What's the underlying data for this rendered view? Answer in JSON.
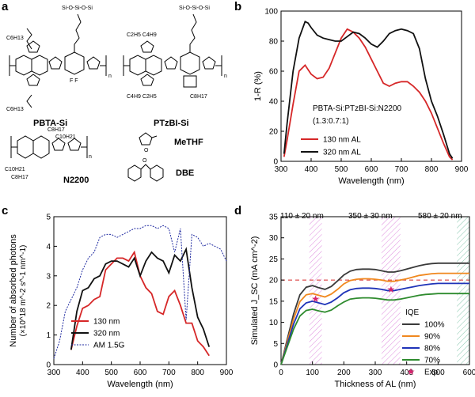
{
  "panels": {
    "a": {
      "letter": "a",
      "compounds": [
        "PBTA-Si",
        "PTzBI-Si",
        "N2200",
        "MeTHF",
        "DBE"
      ]
    },
    "b": {
      "letter": "b",
      "annotation_line1": "PBTA-Si:PTzBI-Si:N2200",
      "annotation_line2": "(1.3:0.7:1)"
    },
    "c": {
      "letter": "c"
    },
    "d": {
      "letter": "d",
      "band_labels": [
        "110 ± 20 nm",
        "350 ± 30 nm",
        "580 ± 20 nm"
      ],
      "iqe_title": "IQE"
    }
  },
  "chart_data": [
    {
      "panel": "b",
      "type": "line",
      "xlabel": "Wavelength (nm)",
      "ylabel": "1-R (%)",
      "xlim": [
        300,
        900
      ],
      "ylim": [
        0,
        100
      ],
      "xticks": [
        300,
        400,
        500,
        600,
        700,
        800,
        900
      ],
      "yticks": [
        0,
        20,
        40,
        60,
        80,
        100
      ],
      "legend_position": "bottom-left",
      "series": [
        {
          "name": "130 nm AL",
          "color": "#d62728",
          "x": [
            310,
            320,
            340,
            360,
            380,
            390,
            400,
            420,
            440,
            460,
            480,
            500,
            520,
            540,
            560,
            580,
            600,
            620,
            640,
            660,
            680,
            700,
            720,
            740,
            760,
            780,
            800,
            820,
            840,
            860,
            870
          ],
          "y": [
            3,
            14,
            38,
            60,
            64,
            61,
            58,
            55,
            56,
            62,
            72,
            82,
            88,
            86,
            82,
            76,
            68,
            60,
            52,
            50,
            52,
            53,
            53,
            50,
            46,
            40,
            32,
            22,
            12,
            3,
            1
          ]
        },
        {
          "name": "320 nm AL",
          "color": "#111111",
          "x": [
            310,
            320,
            340,
            360,
            380,
            390,
            400,
            420,
            440,
            460,
            480,
            500,
            520,
            540,
            560,
            580,
            600,
            620,
            640,
            660,
            680,
            700,
            720,
            740,
            760,
            780,
            800,
            820,
            840,
            860,
            870
          ],
          "y": [
            5,
            25,
            60,
            82,
            93,
            92,
            89,
            84,
            82,
            81,
            80,
            80,
            83,
            86,
            85,
            82,
            78,
            76,
            80,
            85,
            87,
            88,
            87,
            85,
            75,
            55,
            40,
            30,
            18,
            5,
            2
          ]
        }
      ]
    },
    {
      "panel": "c",
      "type": "line",
      "xlabel": "Wavelength (nm)",
      "ylabel": "Number of absorbed photons",
      "ylabel_units": "(×10^18 m^-2 s^-1 nm^-1)",
      "xlim": [
        300,
        900
      ],
      "ylim": [
        0,
        5
      ],
      "xticks": [
        300,
        400,
        500,
        600,
        700,
        800,
        900
      ],
      "yticks": [
        0,
        1,
        2,
        3,
        4,
        5
      ],
      "legend_position": "bottom-left",
      "series": [
        {
          "name": "130 nm",
          "color": "#d62728",
          "x": [
            360,
            380,
            400,
            420,
            440,
            460,
            480,
            500,
            520,
            540,
            560,
            580,
            600,
            620,
            640,
            660,
            680,
            700,
            720,
            740,
            760,
            780,
            800,
            820,
            840
          ],
          "y": [
            0.5,
            1.3,
            1.9,
            2.0,
            2.2,
            2.3,
            3.2,
            3.4,
            3.6,
            3.6,
            3.5,
            3.8,
            3.0,
            2.6,
            2.4,
            1.8,
            1.7,
            2.3,
            2.5,
            2.0,
            1.4,
            1.4,
            0.8,
            0.6,
            0.3
          ]
        },
        {
          "name": "320 nm",
          "color": "#111111",
          "x": [
            360,
            380,
            400,
            420,
            440,
            460,
            480,
            500,
            520,
            540,
            560,
            580,
            600,
            620,
            640,
            660,
            680,
            700,
            720,
            740,
            760,
            780,
            800,
            820,
            840
          ],
          "y": [
            0.5,
            1.8,
            2.5,
            2.6,
            2.9,
            3.0,
            3.4,
            3.5,
            3.5,
            3.4,
            3.3,
            3.6,
            3.0,
            3.5,
            3.8,
            3.6,
            3.5,
            3.1,
            3.7,
            3.5,
            3.9,
            2.6,
            1.6,
            1.2,
            0.6
          ]
        },
        {
          "name": "AM 1.5G",
          "color": "#1f2aa0",
          "dashed": true,
          "x": [
            300,
            320,
            340,
            360,
            380,
            400,
            420,
            440,
            460,
            480,
            500,
            520,
            540,
            560,
            580,
            600,
            620,
            640,
            660,
            680,
            700,
            720,
            740,
            760,
            780,
            800,
            820,
            840,
            860,
            880,
            900
          ],
          "y": [
            0.2,
            0.8,
            1.8,
            2.2,
            2.6,
            3.2,
            3.6,
            3.8,
            4.3,
            4.4,
            4.4,
            4.3,
            4.4,
            4.5,
            4.6,
            4.6,
            4.7,
            4.7,
            4.6,
            4.7,
            4.6,
            3.8,
            4.6,
            1.5,
            4.4,
            4.3,
            4.0,
            4.1,
            4.0,
            3.9,
            3.5
          ]
        }
      ]
    },
    {
      "panel": "d",
      "type": "line",
      "xlabel": "Thickness of AL (nm)",
      "ylabel": "Simulated J_SC (mA cm^-2)",
      "xlim": [
        0,
        600
      ],
      "ylim": [
        0,
        35
      ],
      "xticks": [
        0,
        100,
        200,
        300,
        400,
        500,
        600
      ],
      "yticks": [
        0,
        5,
        10,
        15,
        20,
        25,
        30,
        35
      ],
      "legend_position": "right",
      "dashed_reference_y": 20,
      "bands": [
        [
          90,
          130
        ],
        [
          320,
          380
        ],
        [
          560,
          600
        ]
      ],
      "series": [
        {
          "name": "100%",
          "color": "#3a3a3a",
          "x": [
            0,
            20,
            40,
            60,
            80,
            100,
            120,
            140,
            160,
            180,
            200,
            220,
            240,
            260,
            280,
            300,
            320,
            340,
            360,
            380,
            400,
            420,
            440,
            460,
            480,
            500,
            520,
            540,
            560,
            580,
            600
          ],
          "y": [
            0,
            6,
            12,
            16.5,
            18.3,
            18.7,
            18.2,
            17.8,
            18.5,
            19.8,
            21.2,
            22.1,
            22.5,
            22.6,
            22.6,
            22.5,
            22.2,
            21.9,
            21.9,
            22.2,
            22.6,
            23.0,
            23.4,
            23.7,
            23.9,
            24.0,
            24.0,
            24.0,
            24.0,
            24.0,
            24.0
          ]
        },
        {
          "name": "90%",
          "color": "#f0881f",
          "x": [
            0,
            20,
            40,
            60,
            80,
            100,
            120,
            140,
            160,
            180,
            200,
            220,
            240,
            260,
            280,
            300,
            320,
            340,
            360,
            380,
            400,
            420,
            440,
            460,
            480,
            500,
            520,
            540,
            560,
            580,
            600
          ],
          "y": [
            0,
            5.4,
            10.8,
            14.9,
            16.5,
            16.8,
            16.4,
            16.0,
            16.7,
            17.8,
            19.1,
            19.9,
            20.2,
            20.3,
            20.3,
            20.2,
            20.0,
            19.7,
            19.7,
            20.0,
            20.3,
            20.7,
            21.1,
            21.3,
            21.5,
            21.6,
            21.6,
            21.6,
            21.6,
            21.6,
            21.6
          ]
        },
        {
          "name": "80%",
          "color": "#1f33b8",
          "x": [
            0,
            20,
            40,
            60,
            80,
            100,
            120,
            140,
            160,
            180,
            200,
            220,
            240,
            260,
            280,
            300,
            320,
            340,
            360,
            380,
            400,
            420,
            440,
            460,
            480,
            500,
            520,
            540,
            560,
            580,
            600
          ],
          "y": [
            0,
            4.8,
            9.6,
            13.2,
            14.6,
            15.0,
            14.6,
            14.2,
            14.8,
            15.8,
            17.0,
            17.7,
            18.0,
            18.1,
            18.1,
            18.0,
            17.8,
            17.5,
            17.5,
            17.8,
            18.1,
            18.4,
            18.7,
            18.9,
            19.1,
            19.2,
            19.2,
            19.2,
            19.2,
            19.2,
            19.2
          ]
        },
        {
          "name": "70%",
          "color": "#2e8b2e",
          "x": [
            0,
            20,
            40,
            60,
            80,
            100,
            120,
            140,
            160,
            180,
            200,
            220,
            240,
            260,
            280,
            300,
            320,
            340,
            360,
            380,
            400,
            420,
            440,
            460,
            480,
            500,
            520,
            540,
            560,
            580,
            600
          ],
          "y": [
            0,
            4.2,
            8.4,
            11.5,
            12.8,
            13.1,
            12.7,
            12.4,
            12.9,
            13.9,
            14.8,
            15.5,
            15.7,
            15.8,
            15.8,
            15.7,
            15.5,
            15.3,
            15.3,
            15.5,
            15.8,
            16.1,
            16.4,
            16.6,
            16.7,
            16.8,
            16.8,
            16.8,
            16.8,
            16.8,
            16.8
          ]
        }
      ],
      "exp_points": {
        "name": "Exp.",
        "color": "#d6246e",
        "x": [
          110,
          350
        ],
        "y": [
          15.5,
          17.8
        ]
      }
    }
  ]
}
